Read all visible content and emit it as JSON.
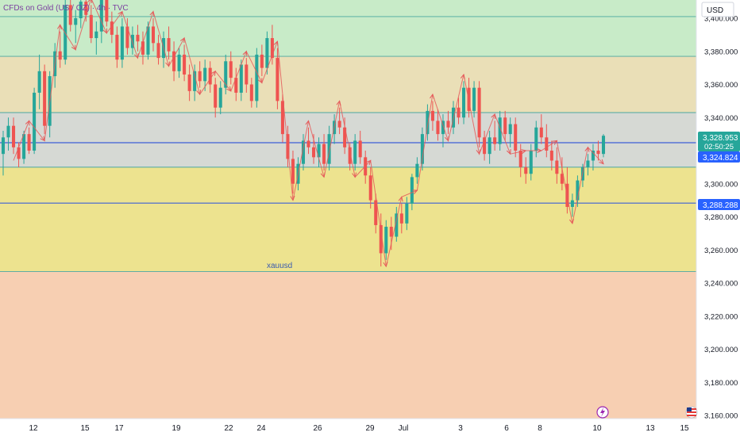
{
  "header": {
    "title_parts": [
      "CFDs on Gold (US",
      " / OZ) · 4h · TVC"
    ]
  },
  "currency": "USD",
  "watermark": "xauusd",
  "zone_colors": {
    "green": "#c8ebc8",
    "beige": "#eadfb7",
    "grey": "#d6d9d4",
    "yellow": "#ede38f",
    "salmon": "#f7cfb2",
    "candle_up": "#26a69a",
    "candle_down": "#ef5350",
    "level_line": "#5b7bd5",
    "price_tag": "#26a69a",
    "level_tag": "#2962ff"
  },
  "price_tags": {
    "current": "3,328.953",
    "countdown": "02:50:25",
    "level_1": "3,324.824",
    "level_2": "3,288.288"
  },
  "footer_icons": [
    "lightning-icon",
    "us-flag-icon"
  ],
  "chart_data": {
    "type": "candlestick",
    "interval": "4h",
    "y_axis": {
      "side": "right",
      "range": [
        3155,
        3420
      ],
      "ticks": [
        "3,400.000",
        "3,380.000",
        "3,360.000",
        "3,340.000",
        "3,320.000",
        "3,300.000",
        "3,280.000",
        "3,260.000",
        "3,240.000",
        "3,220.000",
        "3,200.000",
        "3,180.000",
        "3,160.000"
      ]
    },
    "x_axis": {
      "ticks": [
        "12",
        "15",
        "17",
        "19",
        "22",
        "24",
        "26",
        "29",
        "Jul",
        "3",
        "6",
        "8",
        "10",
        "13",
        "15"
      ]
    },
    "zones": [
      {
        "from": 3377,
        "to": 3420,
        "color": "green"
      },
      {
        "from": 3343,
        "to": 3377,
        "color": "beige"
      },
      {
        "from": 3310,
        "to": 3343,
        "color": "grey"
      },
      {
        "from": 3247,
        "to": 3310,
        "color": "yellow"
      },
      {
        "from": 3155,
        "to": 3247,
        "color": "salmon"
      }
    ],
    "horizontal_lines": [
      3401,
      3377,
      3343,
      3324.8,
      3310,
      3288.3,
      3247
    ],
    "ohlc": [
      [
        3318,
        3332,
        3305,
        3328
      ],
      [
        3328,
        3340,
        3320,
        3335
      ],
      [
        3335,
        3340,
        3318,
        3322
      ],
      [
        3322,
        3325,
        3310,
        3315
      ],
      [
        3315,
        3332,
        3312,
        3330
      ],
      [
        3330,
        3334,
        3318,
        3320
      ],
      [
        3320,
        3358,
        3318,
        3355
      ],
      [
        3355,
        3378,
        3345,
        3368
      ],
      [
        3368,
        3372,
        3330,
        3335
      ],
      [
        3335,
        3368,
        3328,
        3365
      ],
      [
        3365,
        3385,
        3358,
        3380
      ],
      [
        3380,
        3392,
        3370,
        3375
      ],
      [
        3375,
        3412,
        3372,
        3408
      ],
      [
        3408,
        3415,
        3392,
        3396
      ],
      [
        3396,
        3405,
        3385,
        3400
      ],
      [
        3400,
        3418,
        3394,
        3410
      ],
      [
        3410,
        3420,
        3398,
        3402
      ],
      [
        3402,
        3408,
        3385,
        3388
      ],
      [
        3388,
        3398,
        3378,
        3392
      ],
      [
        3392,
        3420,
        3385,
        3415
      ],
      [
        3415,
        3420,
        3395,
        3398
      ],
      [
        3398,
        3404,
        3385,
        3390
      ],
      [
        3390,
        3395,
        3370,
        3375
      ],
      [
        3375,
        3400,
        3370,
        3395
      ],
      [
        3395,
        3400,
        3378,
        3382
      ],
      [
        3382,
        3395,
        3378,
        3390
      ],
      [
        3390,
        3396,
        3380,
        3386
      ],
      [
        3386,
        3392,
        3372,
        3378
      ],
      [
        3378,
        3398,
        3375,
        3395
      ],
      [
        3395,
        3400,
        3380,
        3385
      ],
      [
        3385,
        3390,
        3372,
        3376
      ],
      [
        3376,
        3392,
        3370,
        3388
      ],
      [
        3388,
        3395,
        3375,
        3380
      ],
      [
        3380,
        3386,
        3362,
        3368
      ],
      [
        3368,
        3382,
        3364,
        3378
      ],
      [
        3378,
        3384,
        3362,
        3366
      ],
      [
        3366,
        3372,
        3350,
        3356
      ],
      [
        3356,
        3372,
        3350,
        3368
      ],
      [
        3368,
        3374,
        3358,
        3362
      ],
      [
        3362,
        3375,
        3356,
        3370
      ],
      [
        3370,
        3374,
        3355,
        3360
      ],
      [
        3360,
        3364,
        3340,
        3346
      ],
      [
        3346,
        3362,
        3342,
        3358
      ],
      [
        3358,
        3378,
        3354,
        3374
      ],
      [
        3374,
        3380,
        3360,
        3364
      ],
      [
        3364,
        3370,
        3350,
        3355
      ],
      [
        3355,
        3375,
        3350,
        3372
      ],
      [
        3372,
        3376,
        3355,
        3360
      ],
      [
        3360,
        3364,
        3346,
        3350
      ],
      [
        3350,
        3382,
        3346,
        3378
      ],
      [
        3378,
        3384,
        3365,
        3370
      ],
      [
        3370,
        3392,
        3366,
        3388
      ],
      [
        3388,
        3396,
        3372,
        3376
      ],
      [
        3376,
        3382,
        3345,
        3350
      ],
      [
        3350,
        3354,
        3325,
        3330
      ],
      [
        3330,
        3335,
        3310,
        3315
      ],
      [
        3315,
        3320,
        3294,
        3300
      ],
      [
        3300,
        3316,
        3296,
        3312
      ],
      [
        3312,
        3330,
        3308,
        3326
      ],
      [
        3326,
        3334,
        3318,
        3322
      ],
      [
        3322,
        3330,
        3312,
        3316
      ],
      [
        3316,
        3328,
        3310,
        3324
      ],
      [
        3324,
        3330,
        3308,
        3312
      ],
      [
        3312,
        3335,
        3308,
        3330
      ],
      [
        3330,
        3342,
        3324,
        3338
      ],
      [
        3338,
        3346,
        3330,
        3334
      ],
      [
        3334,
        3340,
        3318,
        3322
      ],
      [
        3322,
        3325,
        3308,
        3312
      ],
      [
        3312,
        3330,
        3308,
        3326
      ],
      [
        3326,
        3332,
        3312,
        3316
      ],
      [
        3316,
        3320,
        3300,
        3305
      ],
      [
        3305,
        3310,
        3285,
        3290
      ],
      [
        3290,
        3294,
        3270,
        3275
      ],
      [
        3275,
        3282,
        3250,
        3258
      ],
      [
        3258,
        3278,
        3254,
        3274
      ],
      [
        3274,
        3280,
        3260,
        3268
      ],
      [
        3268,
        3286,
        3265,
        3282
      ],
      [
        3282,
        3288,
        3270,
        3276
      ],
      [
        3276,
        3292,
        3272,
        3288
      ],
      [
        3288,
        3306,
        3284,
        3304
      ],
      [
        3304,
        3316,
        3300,
        3312
      ],
      [
        3312,
        3334,
        3308,
        3330
      ],
      [
        3330,
        3348,
        3326,
        3344
      ],
      [
        3344,
        3350,
        3332,
        3338
      ],
      [
        3338,
        3345,
        3326,
        3330
      ],
      [
        3330,
        3342,
        3322,
        3338
      ],
      [
        3338,
        3344,
        3330,
        3334
      ],
      [
        3334,
        3350,
        3330,
        3346
      ],
      [
        3346,
        3352,
        3336,
        3340
      ],
      [
        3340,
        3362,
        3336,
        3358
      ],
      [
        3358,
        3364,
        3340,
        3344
      ],
      [
        3344,
        3362,
        3340,
        3358
      ],
      [
        3358,
        3362,
        3322,
        3328
      ],
      [
        3328,
        3332,
        3314,
        3318
      ],
      [
        3318,
        3332,
        3312,
        3328
      ],
      [
        3328,
        3338,
        3320,
        3324
      ],
      [
        3324,
        3344,
        3320,
        3340
      ],
      [
        3340,
        3344,
        3326,
        3330
      ],
      [
        3330,
        3340,
        3322,
        3336
      ],
      [
        3336,
        3340,
        3316,
        3320
      ],
      [
        3320,
        3324,
        3304,
        3310
      ],
      [
        3310,
        3316,
        3300,
        3306
      ],
      [
        3306,
        3324,
        3302,
        3320
      ],
      [
        3320,
        3338,
        3316,
        3334
      ],
      [
        3334,
        3342,
        3324,
        3328
      ],
      [
        3328,
        3336,
        3316,
        3320
      ],
      [
        3320,
        3326,
        3308,
        3314
      ],
      [
        3314,
        3322,
        3300,
        3306
      ],
      [
        3306,
        3316,
        3296,
        3300
      ],
      [
        3300,
        3310,
        3282,
        3286
      ],
      [
        3286,
        3294,
        3280,
        3290
      ],
      [
        3290,
        3305,
        3286,
        3302
      ],
      [
        3302,
        3312,
        3298,
        3310
      ],
      [
        3310,
        3318,
        3305,
        3314
      ],
      [
        3314,
        3324,
        3308,
        3320
      ],
      [
        3320,
        3326,
        3314,
        3318
      ],
      [
        3318,
        3330,
        3316,
        3329
      ]
    ]
  }
}
